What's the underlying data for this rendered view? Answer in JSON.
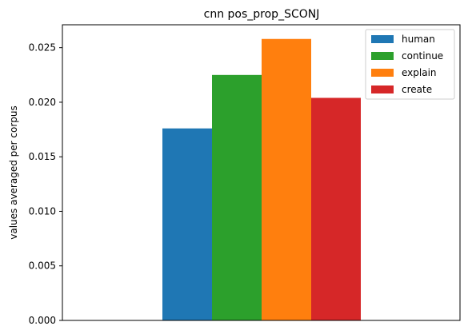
{
  "chart_data": {
    "type": "bar",
    "title": "cnn pos_prop_SCONJ",
    "xlabel": "",
    "ylabel": "values averaged per corpus",
    "categories": [
      ""
    ],
    "series": [
      {
        "name": "human",
        "values": [
          0.0176
        ],
        "color": "#1f77b4"
      },
      {
        "name": "continue",
        "values": [
          0.0225
        ],
        "color": "#2ca02c"
      },
      {
        "name": "explain",
        "values": [
          0.0258
        ],
        "color": "#ff7f0e"
      },
      {
        "name": "create",
        "values": [
          0.0204
        ],
        "color": "#d62728"
      }
    ],
    "ylim": [
      0,
      0.0271
    ],
    "yticks": [
      0.0,
      0.005,
      0.01,
      0.015,
      0.02,
      0.025
    ],
    "ytick_labels": [
      "0.000",
      "0.005",
      "0.010",
      "0.015",
      "0.020",
      "0.025"
    ],
    "grid": false,
    "legend_position": "top-right"
  }
}
